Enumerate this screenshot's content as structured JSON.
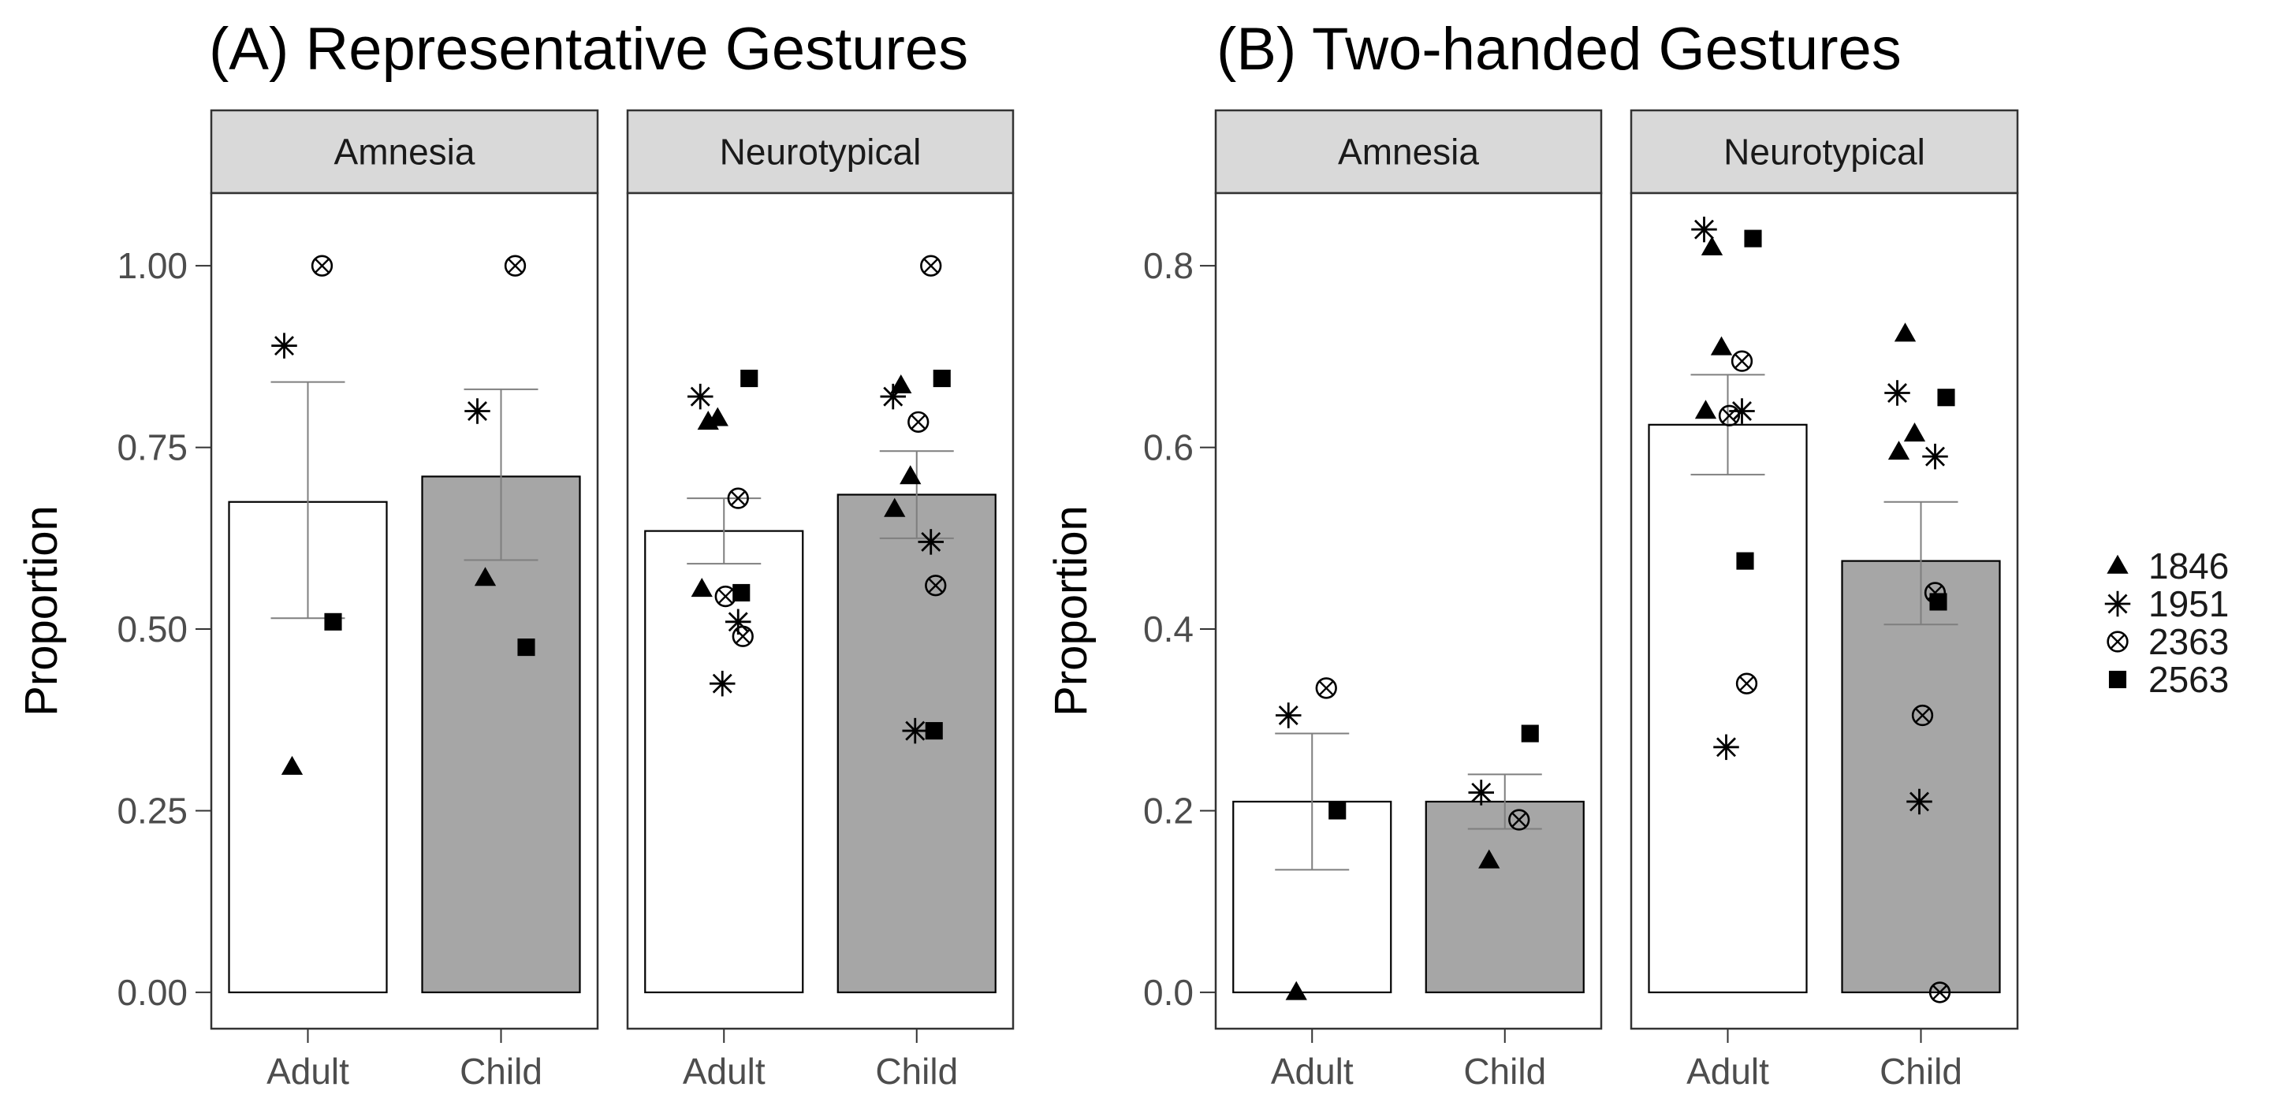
{
  "chart_data": [
    {
      "type": "bar",
      "title": "(A)  Representative Gestures",
      "ylabel": "Proportion",
      "xlabel": "",
      "ylim": [
        -0.05,
        1.1
      ],
      "yticks": [
        0,
        0.25,
        0.5,
        0.75,
        1.0
      ],
      "ytick_labels": [
        "0.00",
        "0.25",
        "0.50",
        "0.75",
        "1.00"
      ],
      "categories": [
        "Adult",
        "Child"
      ],
      "facets": [
        {
          "label": "Amnesia",
          "bars": [
            {
              "category": "Adult",
              "value": 0.675,
              "err_low": 0.515,
              "err_high": 0.84,
              "points": [
                {
                  "participant": "1846",
                  "value": 0.31
                },
                {
                  "participant": "1951",
                  "value": 0.89
                },
                {
                  "participant": "2363",
                  "value": 1.0
                },
                {
                  "participant": "2563",
                  "value": 0.51
                }
              ]
            },
            {
              "category": "Child",
              "value": 0.71,
              "err_low": 0.595,
              "err_high": 0.83,
              "points": [
                {
                  "participant": "1846",
                  "value": 0.57
                },
                {
                  "participant": "1951",
                  "value": 0.8
                },
                {
                  "participant": "2363",
                  "value": 1.0
                },
                {
                  "participant": "2563",
                  "value": 0.475
                }
              ]
            }
          ]
        },
        {
          "label": "Neurotypical",
          "bars": [
            {
              "category": "Adult",
              "value": 0.635,
              "err_low": 0.59,
              "err_high": 0.68,
              "points": [
                {
                  "participant": "1846",
                  "value": 0.785
                },
                {
                  "participant": "1846",
                  "value": 0.79
                },
                {
                  "participant": "1846",
                  "value": 0.555
                },
                {
                  "participant": "1951",
                  "value": 0.82
                },
                {
                  "participant": "1951",
                  "value": 0.51
                },
                {
                  "participant": "1951",
                  "value": 0.425
                },
                {
                  "participant": "2363",
                  "value": 0.68
                },
                {
                  "participant": "2363",
                  "value": 0.545
                },
                {
                  "participant": "2363",
                  "value": 0.49
                },
                {
                  "participant": "2563",
                  "value": 0.845
                },
                {
                  "participant": "2563",
                  "value": 0.55
                }
              ]
            },
            {
              "category": "Child",
              "value": 0.685,
              "err_low": 0.625,
              "err_high": 0.745,
              "points": [
                {
                  "participant": "1846",
                  "value": 0.835
                },
                {
                  "participant": "1846",
                  "value": 0.71
                },
                {
                  "participant": "1846",
                  "value": 0.665
                },
                {
                  "participant": "1951",
                  "value": 0.82
                },
                {
                  "participant": "1951",
                  "value": 0.62
                },
                {
                  "participant": "1951",
                  "value": 0.36
                },
                {
                  "participant": "2363",
                  "value": 1.0
                },
                {
                  "participant": "2363",
                  "value": 0.785
                },
                {
                  "participant": "2363",
                  "value": 0.56
                },
                {
                  "participant": "2563",
                  "value": 0.845
                },
                {
                  "participant": "2563",
                  "value": 0.36
                }
              ]
            }
          ]
        }
      ]
    },
    {
      "type": "bar",
      "title": "(B) Two-handed Gestures",
      "ylabel": "Proportion",
      "xlabel": "",
      "ylim": [
        -0.04,
        0.88
      ],
      "yticks": [
        0,
        0.2,
        0.4,
        0.6,
        0.8
      ],
      "ytick_labels": [
        "0.0",
        "0.2",
        "0.4",
        "0.6",
        "0.8"
      ],
      "categories": [
        "Adult",
        "Child"
      ],
      "facets": [
        {
          "label": "Amnesia",
          "bars": [
            {
              "category": "Adult",
              "value": 0.21,
              "err_low": 0.135,
              "err_high": 0.285,
              "points": [
                {
                  "participant": "1846",
                  "value": 0.0
                },
                {
                  "participant": "1951",
                  "value": 0.305
                },
                {
                  "participant": "2363",
                  "value": 0.335
                },
                {
                  "participant": "2563",
                  "value": 0.2
                }
              ]
            },
            {
              "category": "Child",
              "value": 0.21,
              "err_low": 0.18,
              "err_high": 0.24,
              "points": [
                {
                  "participant": "1846",
                  "value": 0.145
                },
                {
                  "participant": "1951",
                  "value": 0.22
                },
                {
                  "participant": "2363",
                  "value": 0.19
                },
                {
                  "participant": "2563",
                  "value": 0.285
                }
              ]
            }
          ]
        },
        {
          "label": "Neurotypical",
          "bars": [
            {
              "category": "Adult",
              "value": 0.625,
              "err_low": 0.57,
              "err_high": 0.68,
              "points": [
                {
                  "participant": "1846",
                  "value": 0.82
                },
                {
                  "participant": "1846",
                  "value": 0.71
                },
                {
                  "participant": "1846",
                  "value": 0.64
                },
                {
                  "participant": "1951",
                  "value": 0.84
                },
                {
                  "participant": "1951",
                  "value": 0.64
                },
                {
                  "participant": "1951",
                  "value": 0.27
                },
                {
                  "participant": "2363",
                  "value": 0.695
                },
                {
                  "participant": "2363",
                  "value": 0.635
                },
                {
                  "participant": "2363",
                  "value": 0.34
                },
                {
                  "participant": "2563",
                  "value": 0.83
                },
                {
                  "participant": "2563",
                  "value": 0.475
                }
              ]
            },
            {
              "category": "Child",
              "value": 0.475,
              "err_low": 0.405,
              "err_high": 0.54,
              "points": [
                {
                  "participant": "1846",
                  "value": 0.725
                },
                {
                  "participant": "1846",
                  "value": 0.615
                },
                {
                  "participant": "1846",
                  "value": 0.595
                },
                {
                  "participant": "1951",
                  "value": 0.66
                },
                {
                  "participant": "1951",
                  "value": 0.59
                },
                {
                  "participant": "1951",
                  "value": 0.21
                },
                {
                  "participant": "2363",
                  "value": 0.44
                },
                {
                  "participant": "2363",
                  "value": 0.305
                },
                {
                  "participant": "2363",
                  "value": 0.0
                },
                {
                  "participant": "2563",
                  "value": 0.655
                },
                {
                  "participant": "2563",
                  "value": 0.43
                }
              ]
            }
          ]
        }
      ]
    }
  ],
  "legend": {
    "placement": "right",
    "entries": [
      {
        "label": "1846",
        "shape": "triangle"
      },
      {
        "label": "1951",
        "shape": "asterisk"
      },
      {
        "label": "2363",
        "shape": "circle-cross"
      },
      {
        "label": "2563",
        "shape": "square"
      }
    ]
  },
  "colors": {
    "adult_bar": "#ffffff",
    "child_bar": "#a6a6a6",
    "strip_fill": "#d9d9d9",
    "frame": "#333333",
    "errorbar": "#7f7f7f",
    "marker": "#000000"
  }
}
